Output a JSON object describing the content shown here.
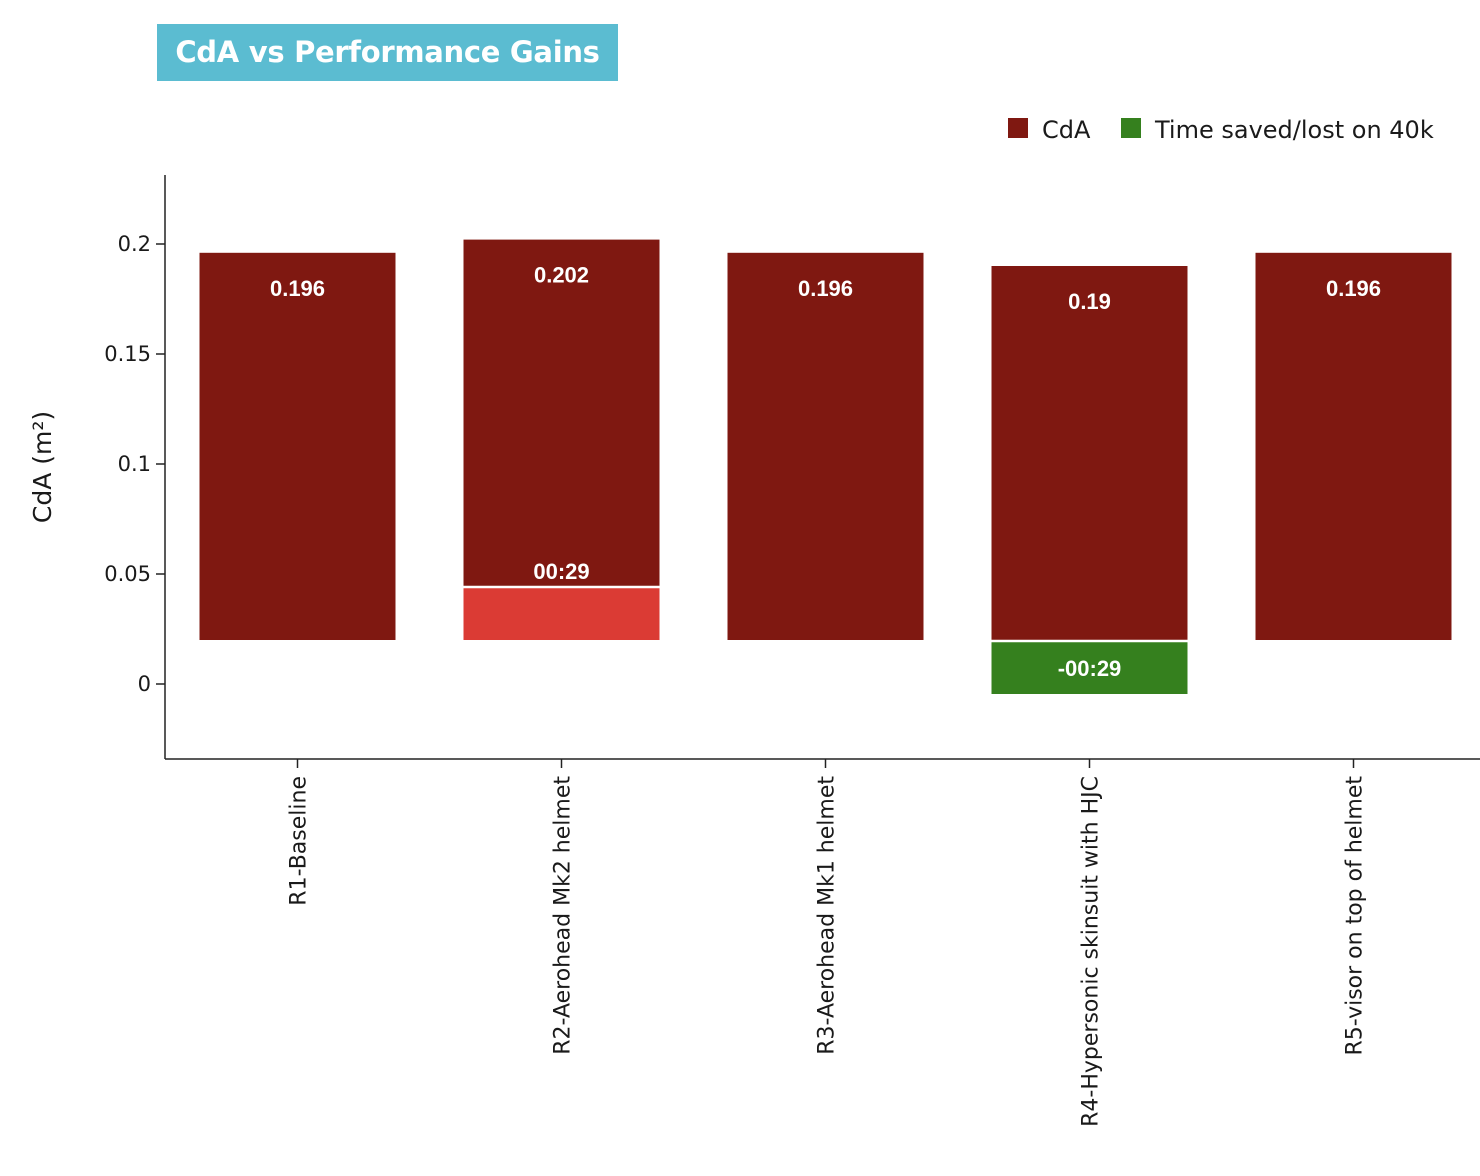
{
  "title": "CdA vs Performance Gains",
  "colors": {
    "title_bg": "#5bbcd1",
    "cda": "#7f1811",
    "time_lost": "#db3b34",
    "time_saved": "#35801e",
    "axis": "#222222",
    "label_text": "#ffffff"
  },
  "chart_data": {
    "type": "bar",
    "title": "CdA vs Performance Gains",
    "ylabel": "CdA (m²)",
    "xlabel": "",
    "ylim": [
      -0.034,
      0.231
    ],
    "yticks": [
      0,
      0.05,
      0.1,
      0.15,
      0.2
    ],
    "ytick_labels": [
      "0",
      "0.05",
      "0.1",
      "0.15",
      "0.2"
    ],
    "legend_position": "top-right",
    "grid": false,
    "categories": [
      "R1-Baseline",
      "R2-Aerohead Mk2 helmet",
      "R3-Aerohead Mk1 helmet",
      "R4-Hypersonic skinsuit with HJC",
      "R5-visor on top of helmet"
    ],
    "series": [
      {
        "name": "CdA",
        "base": 0.02,
        "values": [
          0.196,
          0.202,
          0.196,
          0.19,
          0.196
        ],
        "labels": [
          "0.196",
          "0.202",
          "0.196",
          "0.19",
          "0.196"
        ]
      },
      {
        "name": "Time saved/lost on 40k",
        "values_seconds": [
          0,
          29,
          0,
          -29,
          0
        ],
        "labels": [
          "",
          "00:29",
          "",
          "-00:29",
          ""
        ]
      }
    ]
  }
}
